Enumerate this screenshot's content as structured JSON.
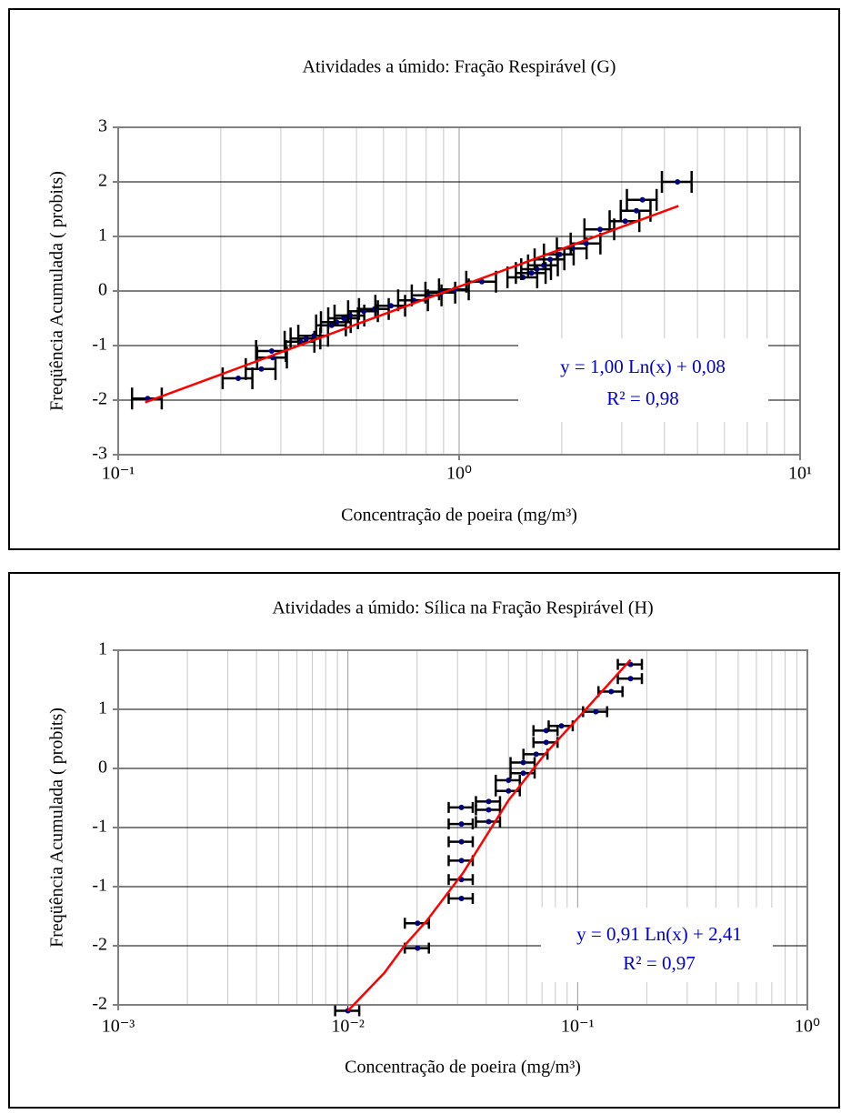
{
  "chart_data": [
    {
      "type": "scatter",
      "title": "Atividades a úmido: Fração Respirável  (G)",
      "xlabel": "Concentração de poeira (mg/m³)",
      "ylabel": "Freqüência Acumulada ( probits)",
      "xscale": "log",
      "xlim": [
        0.1,
        10
      ],
      "xticks": [
        {
          "value": 0.1,
          "label": "10⁻¹"
        },
        {
          "value": 1,
          "label": "10⁰"
        },
        {
          "value": 10,
          "label": "10¹"
        }
      ],
      "ylim": [
        -3,
        3
      ],
      "yticks": [
        -3,
        -2,
        -1,
        0,
        1,
        2,
        3
      ],
      "grid": true,
      "annotations": [
        "y = 1,00 Ln(x) + 0,08",
        "R² = 0,98"
      ],
      "series": [
        {
          "type": "scatter",
          "color": "#000080",
          "xerr": 0.1,
          "x": [
            0.122,
            0.225,
            0.263,
            0.282,
            0.284,
            0.342,
            0.356,
            0.375,
            0.423,
            0.437,
            0.459,
            0.479,
            0.525,
            0.565,
            0.631,
            0.736,
            0.807,
            0.885,
            0.97,
            1.166,
            1.54,
            1.63,
            1.69,
            1.77,
            1.85,
            1.97,
            2.15,
            2.36,
            2.59,
            3.07,
            3.31,
            3.45,
            4.37
          ],
          "values": [
            -1.97,
            -1.6,
            -1.43,
            -1.1,
            -1.22,
            -0.93,
            -0.87,
            -0.82,
            -0.63,
            -0.57,
            -0.5,
            -0.45,
            -0.37,
            -0.33,
            -0.27,
            -0.17,
            -0.08,
            -0.03,
            0.03,
            0.17,
            0.25,
            0.33,
            0.4,
            0.47,
            0.58,
            0.67,
            0.78,
            0.87,
            1.13,
            1.28,
            1.47,
            1.67,
            2.0
          ]
        },
        {
          "type": "line",
          "color": "#ff0000",
          "x": [
            0.12,
            0.2,
            0.5,
            1,
            2,
            4.4
          ],
          "values": [
            -2.04,
            -1.53,
            -0.61,
            0.08,
            0.77,
            1.56
          ]
        }
      ]
    },
    {
      "type": "scatter",
      "title": "Atividades a úmido: Sílica na Fração Respirável  (H)",
      "xlabel": "Concentração de poeira (mg/m³)",
      "ylabel": "Freqüência Acumulada ( probits)",
      "xscale": "log",
      "xlim": [
        0.001,
        1
      ],
      "xticks": [
        {
          "value": 0.001,
          "label": "10⁻³"
        },
        {
          "value": 0.01,
          "label": "10⁻²"
        },
        {
          "value": 0.1,
          "label": "10⁻¹"
        },
        {
          "value": 1,
          "label": "10⁰"
        }
      ],
      "ylim": [
        -2,
        1
      ],
      "yticks": [
        {
          "value": -2,
          "label": "-2"
        },
        {
          "value": -1.5,
          "label": "-2"
        },
        {
          "value": -1,
          "label": "-1"
        },
        {
          "value": -0.5,
          "label": "-1"
        },
        0,
        {
          "value": 0.5,
          "label": "1"
        },
        1
      ],
      "grid": true,
      "annotations": [
        "y = 0,91 Ln(x) + 2,41",
        "R² = 0,97"
      ],
      "series": [
        {
          "type": "scatter",
          "color": "#000080",
          "xerr": 0.12,
          "x": [
            0.01,
            0.0201,
            0.0201,
            0.0312,
            0.0312,
            0.0312,
            0.0312,
            0.0312,
            0.0312,
            0.041,
            0.041,
            0.041,
            0.05,
            0.05,
            0.058,
            0.058,
            0.066,
            0.073,
            0.073,
            0.085,
            0.12,
            0.14,
            0.17,
            0.17
          ],
          "values": [
            -2.05,
            -1.52,
            -1.31,
            -1.1,
            -0.94,
            -0.78,
            -0.62,
            -0.47,
            -0.33,
            -0.45,
            -0.35,
            -0.28,
            -0.19,
            -0.1,
            -0.04,
            0.05,
            0.12,
            0.22,
            0.32,
            0.36,
            0.48,
            0.65,
            0.76,
            0.88
          ]
        },
        {
          "type": "line",
          "color": "#ff0000",
          "x": [
            0.01,
            0.0144,
            0.0176,
            0.022,
            0.0318,
            0.05,
            0.072,
            0.104,
            0.17
          ],
          "values": [
            -2.05,
            -1.73,
            -1.5,
            -1.29,
            -0.88,
            -0.27,
            0.12,
            0.46,
            0.92
          ]
        }
      ]
    }
  ]
}
